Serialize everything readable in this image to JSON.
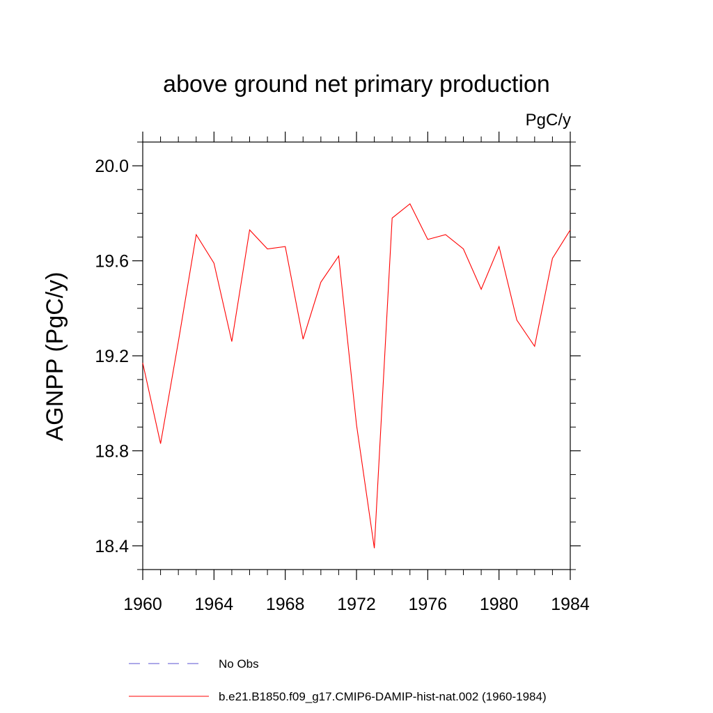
{
  "chart_data": {
    "type": "line",
    "title": "above ground net primary production",
    "unit_label": "PgC/y",
    "ylabel": "AGNPP  (PgC/y)",
    "xlabel": "",
    "xlim": [
      1960,
      1984
    ],
    "ylim": [
      18.3,
      20.1
    ],
    "x_ticks": [
      1960,
      1964,
      1968,
      1972,
      1976,
      1980,
      1984
    ],
    "x_tick_labels": [
      "1960",
      "1964",
      "1968",
      "1972",
      "1976",
      "1980",
      "1984"
    ],
    "y_ticks": [
      18.4,
      18.8,
      19.2,
      19.6,
      20.0
    ],
    "y_tick_labels": [
      "18.4",
      "18.8",
      "19.2",
      "19.6",
      "20.0"
    ],
    "x_minor_step": 1,
    "y_minor_step": 0.1,
    "grid": false,
    "series": [
      {
        "name": "b.e21.B1850.f09_g17.CMIP6-DAMIP-hist-nat.002 (1960-1984)",
        "color": "#ff0000",
        "dash": "solid",
        "x": [
          1960,
          1961,
          1962,
          1963,
          1964,
          1965,
          1966,
          1967,
          1968,
          1969,
          1970,
          1971,
          1972,
          1973,
          1974,
          1975,
          1976,
          1977,
          1978,
          1979,
          1980,
          1981,
          1982,
          1983,
          1984
        ],
        "values": [
          19.17,
          18.83,
          19.26,
          19.71,
          19.59,
          19.26,
          19.73,
          19.65,
          19.66,
          19.27,
          19.51,
          19.62,
          18.91,
          18.39,
          19.78,
          19.84,
          19.69,
          19.71,
          19.65,
          19.48,
          19.66,
          19.35,
          19.24,
          19.61,
          19.73
        ]
      }
    ],
    "legend": {
      "placement": "bottom",
      "entries": [
        {
          "label": "No Obs",
          "color": "#5a50d0",
          "dash": "dashed"
        },
        {
          "label": "b.e21.B1850.f09_g17.CMIP6-DAMIP-hist-nat.002 (1960-1984)",
          "color": "#ff0000",
          "dash": "solid"
        }
      ]
    }
  }
}
